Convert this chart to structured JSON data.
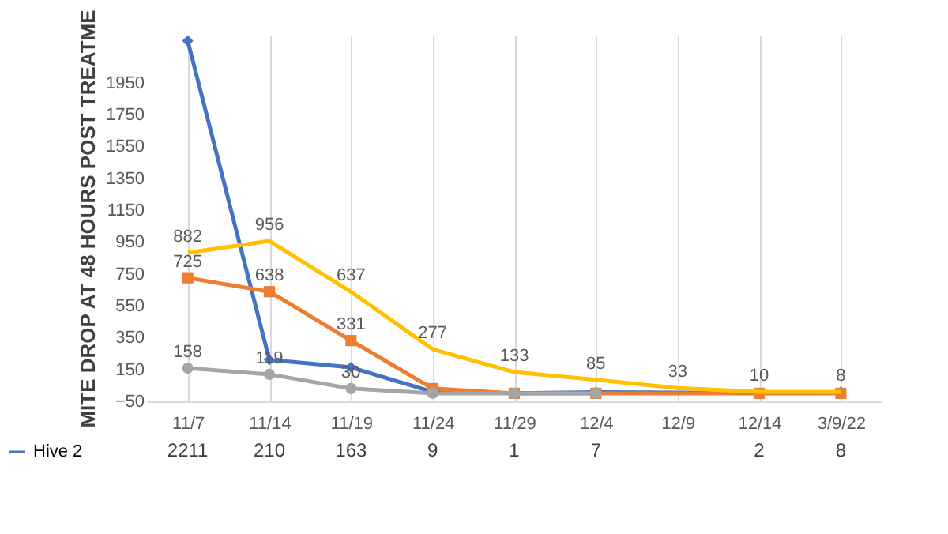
{
  "chart_data": {
    "type": "line",
    "ylabel": "MITE DROP AT 48 HOURS POST TREATME",
    "categories": [
      "11/7",
      "11/14",
      "11/19",
      "11/24",
      "11/29",
      "12/4",
      "12/9",
      "12/14",
      "3/9/22"
    ],
    "series": [
      {
        "name": "Hive 2",
        "color": "#4472c4",
        "marker": "diamond",
        "values": [
          2211,
          210,
          163,
          9,
          1,
          7,
          null,
          2,
          8
        ],
        "value_labels": [
          "2211",
          "210",
          "163",
          "9",
          "1",
          "7",
          null,
          "2",
          "8"
        ]
      },
      {
        "color": "#ed7d31",
        "marker": "square",
        "values": [
          725,
          638,
          331,
          30,
          0,
          0,
          null,
          0,
          0
        ],
        "value_labels": [
          "725",
          "638",
          "331",
          null,
          null,
          null,
          null,
          null,
          null
        ]
      },
      {
        "color": "#a5a5a5",
        "marker": "circle",
        "values": [
          158,
          119,
          30,
          0,
          0,
          0,
          null,
          null,
          null
        ],
        "value_labels": [
          "158",
          "119",
          "30",
          null,
          null,
          null,
          null,
          null,
          null
        ]
      },
      {
        "color": "#ffc000",
        "marker": "none",
        "values": [
          882,
          956,
          637,
          277,
          133,
          85,
          33,
          10,
          8
        ],
        "value_labels": [
          "882",
          "956",
          "637",
          "277",
          "133",
          "85",
          "33",
          "10",
          "8"
        ]
      }
    ],
    "ylim": [
      -50,
      2250
    ],
    "yticks": [
      -50,
      150,
      350,
      550,
      750,
      950,
      1150,
      1350,
      1550,
      1750,
      1950
    ],
    "grid": "x",
    "legend": "bottom left"
  }
}
